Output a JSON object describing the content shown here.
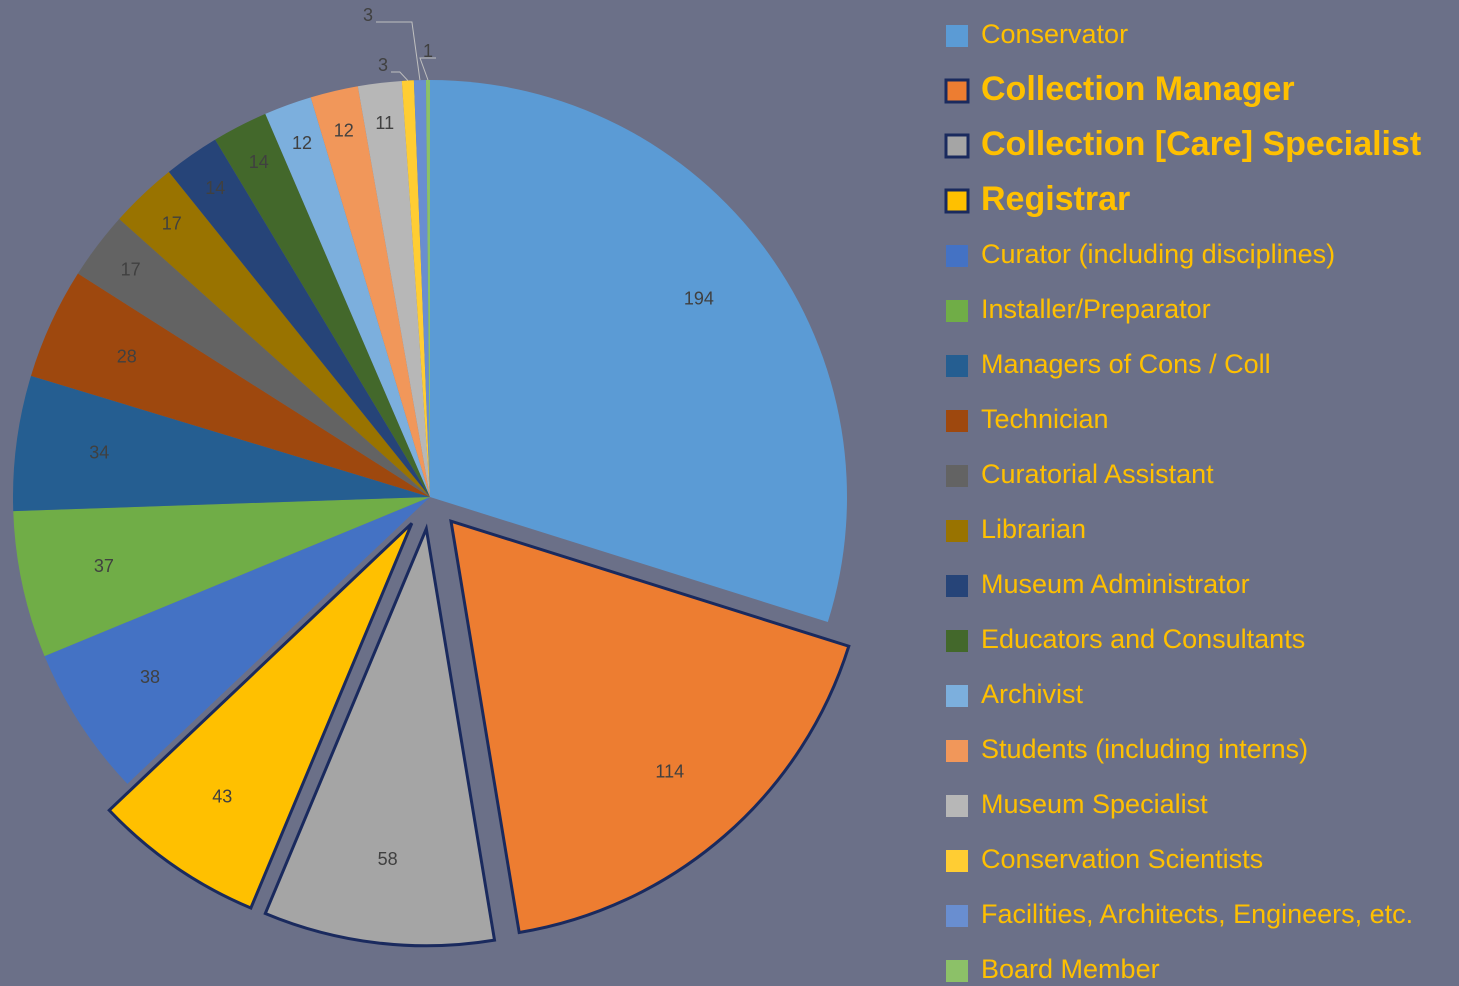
{
  "chart_data": {
    "type": "pie",
    "categories": [
      "Conservator",
      "Collection Manager",
      "Collection [Care] Specialist",
      "Registrar",
      "Curator (including disciplines)",
      "Installer/Preparator",
      "Managers of Cons / Coll",
      "Technician",
      "Curatorial Assistant",
      "Librarian",
      "Museum Administrator",
      "Educators and Consultants",
      "Archivist",
      "Students (including interns)",
      "Museum Specialist",
      "Conservation Scientists",
      "Facilities, Architects, Engineers, etc.",
      "Board Member"
    ],
    "values": [
      194,
      114,
      58,
      43,
      38,
      37,
      34,
      28,
      17,
      17,
      14,
      14,
      12,
      12,
      11,
      3,
      3,
      1
    ],
    "colors": [
      "#5b9bd5",
      "#ed7d31",
      "#a5a5a5",
      "#ffc000",
      "#4472c4",
      "#70ad47",
      "#255e91",
      "#9e480e",
      "#636363",
      "#997300",
      "#264478",
      "#43682b",
      "#7cafdd",
      "#f1975a",
      "#b7b7b7",
      "#ffcd33",
      "#698ed0",
      "#8cc168"
    ],
    "exploded": [
      1,
      2,
      3
    ],
    "legend": "right"
  }
}
